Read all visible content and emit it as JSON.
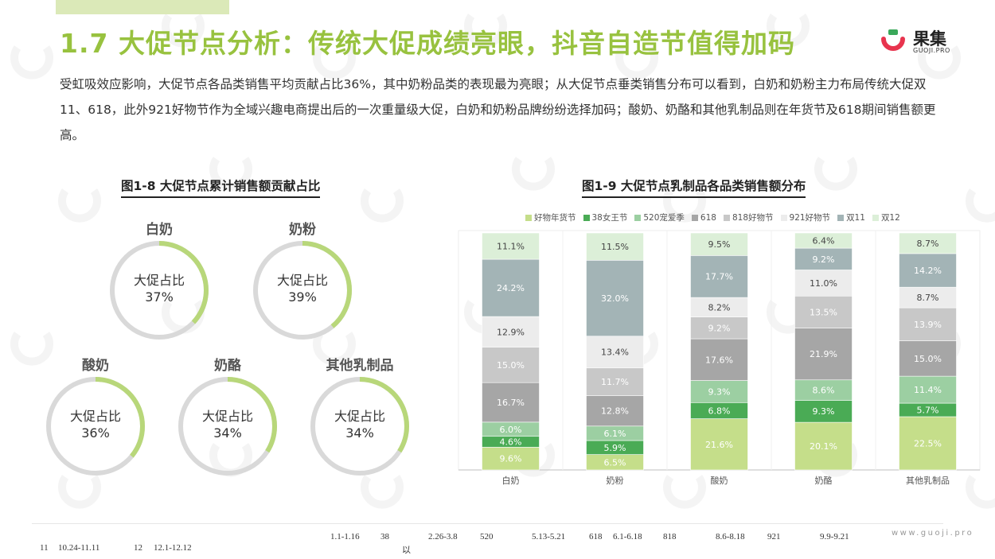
{
  "header": {
    "title": "1.7 大促节点分析：传统大促成绩亮眼，抖音自造节值得加码",
    "logo_text": "果集",
    "logo_sub": "GUOJI.PRO"
  },
  "intro": "受虹吸效应影响，大促节点各品类销售平均贡献占比36%，其中奶粉品类的表现最为亮眼；从大促节点垂类销售分布可以看到，白奶和奶粉主力布局传统大促双11、618，此外921好物节作为全域兴趣电商提出后的一次重量级大促，白奶和奶粉品牌纷纷选择加码；酸奶、奶酪和其他乳制品则在年货节及618期间销售额更高。",
  "donut_panel": {
    "title": "图1-8 大促节点累计销售额贡献占比",
    "center_label": "大促占比",
    "items": [
      {
        "name": "白奶",
        "value": 37,
        "display": "37%"
      },
      {
        "name": "奶粉",
        "value": 39,
        "display": "39%"
      },
      {
        "name": "酸奶",
        "value": 36,
        "display": "36%"
      },
      {
        "name": "奶酪",
        "value": 34,
        "display": "34%"
      },
      {
        "name": "其他乳制品",
        "value": 34,
        "display": "34%"
      }
    ]
  },
  "chart_data": {
    "type": "bar",
    "stacked": true,
    "title": "图1-9 大促节点乳制品各品类销售额分布",
    "categories": [
      "白奶",
      "奶粉",
      "酸奶",
      "奶酪",
      "其他乳制品"
    ],
    "legend_position": "top",
    "series": [
      {
        "name": "好物年货节",
        "color": "#c5de8a",
        "values": [
          9.6,
          6.5,
          21.6,
          20.1,
          22.5
        ]
      },
      {
        "name": "38女王节",
        "color": "#4aab55",
        "values": [
          4.6,
          5.9,
          6.8,
          9.3,
          5.7
        ]
      },
      {
        "name": "520宠爱季",
        "color": "#9ccfa2",
        "values": [
          6.0,
          6.1,
          9.3,
          8.6,
          11.4
        ]
      },
      {
        "name": "618",
        "color": "#a6a6a6",
        "values": [
          16.7,
          12.8,
          17.6,
          21.9,
          15.0
        ]
      },
      {
        "name": "818好物节",
        "color": "#c8c8c8",
        "values": [
          15.0,
          11.7,
          9.2,
          13.5,
          13.9
        ]
      },
      {
        "name": "921好物节",
        "color": "#ececec",
        "values": [
          12.9,
          13.4,
          8.2,
          11.0,
          8.7
        ]
      },
      {
        "name": "双11",
        "color": "#a3b4b6",
        "values": [
          24.2,
          32.0,
          17.7,
          9.2,
          14.2
        ]
      },
      {
        "name": "双12",
        "color": "#dcefd8",
        "values": [
          11.1,
          11.5,
          9.5,
          6.4,
          8.7
        ]
      }
    ],
    "labels": [
      [
        "9.6%",
        "6.5%",
        "21.6%",
        "20.1%",
        "22.5%"
      ],
      [
        "4.6%",
        "5.9%",
        "6.8%",
        "9.3%",
        "5.7%"
      ],
      [
        "6.0%",
        "6.1%",
        "9.3%",
        "8.6%",
        "11.4%"
      ],
      [
        "16.7%",
        "12.8%",
        "17.6%",
        "21.9%",
        "15.0%"
      ],
      [
        "15.0%",
        "11.7%",
        "9.2%",
        "13.5%",
        "13.9%"
      ],
      [
        "12.9%",
        "13.4%",
        "8.2%",
        "11.0%",
        "8.7%"
      ],
      [
        "24.2%",
        "32.0%",
        "17.7%",
        "9.2%",
        "14.2%"
      ],
      [
        "11.1%",
        "11.5%",
        "9.5%",
        "6.4%",
        "8.7%"
      ]
    ],
    "ylim": [
      0,
      100
    ]
  },
  "colors": {
    "accent": "#98c23f",
    "donut_track": "#d9d9d9",
    "donut_fill": "#b8d77a"
  },
  "footer": {
    "row1": [
      "1.1-1.16",
      "38",
      "2.26-3.8",
      "520",
      "5.13-5.21",
      "618",
      "6.1-6.18",
      "818",
      "8.6-8.18",
      "921",
      "9.9-9.21"
    ],
    "row1_sub": "以",
    "row2": [
      "11",
      "10.24-11.11",
      "12",
      "12.1-12.12"
    ],
    "site": "www.guoji.pro"
  }
}
